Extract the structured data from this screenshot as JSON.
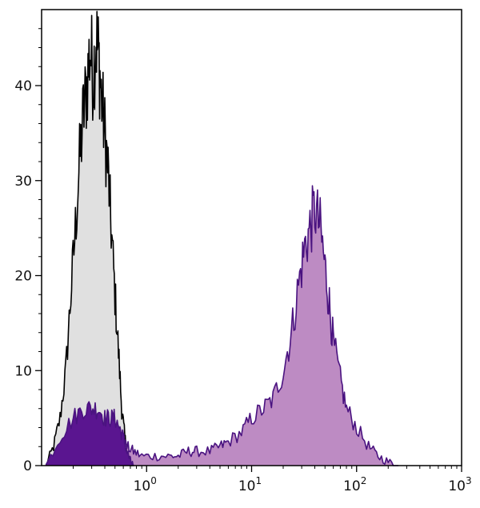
{
  "chart_data": {
    "type": "area",
    "x_scale": "log",
    "xlim": [
      0.1,
      1000
    ],
    "ylim": [
      0,
      48
    ],
    "y_ticks": [
      {
        "value": 0,
        "label": "0"
      },
      {
        "value": 10,
        "label": "10"
      },
      {
        "value": 20,
        "label": "20"
      },
      {
        "value": 30,
        "label": "30"
      },
      {
        "value": 40,
        "label": "40"
      }
    ],
    "x_ticks": [
      {
        "value": 1,
        "base": "10",
        "exp": "0"
      },
      {
        "value": 10,
        "base": "10",
        "exp": "1"
      },
      {
        "value": 100,
        "base": "10",
        "exp": "2"
      },
      {
        "value": 1000,
        "base": "10",
        "exp": "3"
      }
    ],
    "grid": false,
    "series": [
      {
        "fill": "#e0e0e0",
        "stroke": "#000000",
        "x": [
          0.11,
          0.13,
          0.15,
          0.17,
          0.19,
          0.21,
          0.23,
          0.25,
          0.27,
          0.29,
          0.31,
          0.33,
          0.35,
          0.37,
          0.4,
          0.43,
          0.46,
          0.5,
          0.54,
          0.58,
          0.62,
          0.66,
          0.7,
          0.75
        ],
        "y": [
          0,
          2,
          5,
          10,
          18,
          25,
          32,
          37,
          40,
          44,
          41,
          45,
          43,
          39,
          35,
          31,
          25,
          18,
          12,
          6,
          3,
          1,
          0.3,
          0
        ]
      },
      {
        "fill": "#bd8bc3",
        "stroke": "#4a1380",
        "x": [
          0.11,
          0.15,
          0.2,
          0.3,
          0.45,
          0.55,
          0.65,
          0.75,
          0.9,
          1.2,
          1.6,
          2.0,
          2.5,
          3.0,
          4.0,
          5.0,
          6.0,
          8.0,
          10,
          13,
          16,
          20,
          24,
          28,
          32,
          36,
          40,
          45,
          50,
          55,
          60,
          70,
          80,
          100,
          130,
          160,
          200,
          250
        ],
        "y": [
          0,
          2,
          3,
          4,
          4,
          3,
          2,
          1.5,
          1,
          1,
          1,
          1,
          1.5,
          1.5,
          1.5,
          2,
          2.5,
          3.5,
          5,
          6,
          7,
          10,
          14,
          19,
          23,
          25,
          27,
          25,
          21,
          17,
          13,
          9,
          6,
          4,
          2,
          1,
          0.4,
          0
        ]
      },
      {
        "fill": "#5a1590",
        "stroke": "#4a1380",
        "x": [
          0.11,
          0.15,
          0.2,
          0.25,
          0.3,
          0.35,
          0.4,
          0.45,
          0.5,
          0.55,
          0.6,
          0.65,
          0.7,
          0.75
        ],
        "y": [
          0,
          3,
          5,
          6,
          6,
          6,
          5,
          5,
          5,
          4,
          3,
          1.5,
          0.5,
          0
        ]
      }
    ]
  }
}
